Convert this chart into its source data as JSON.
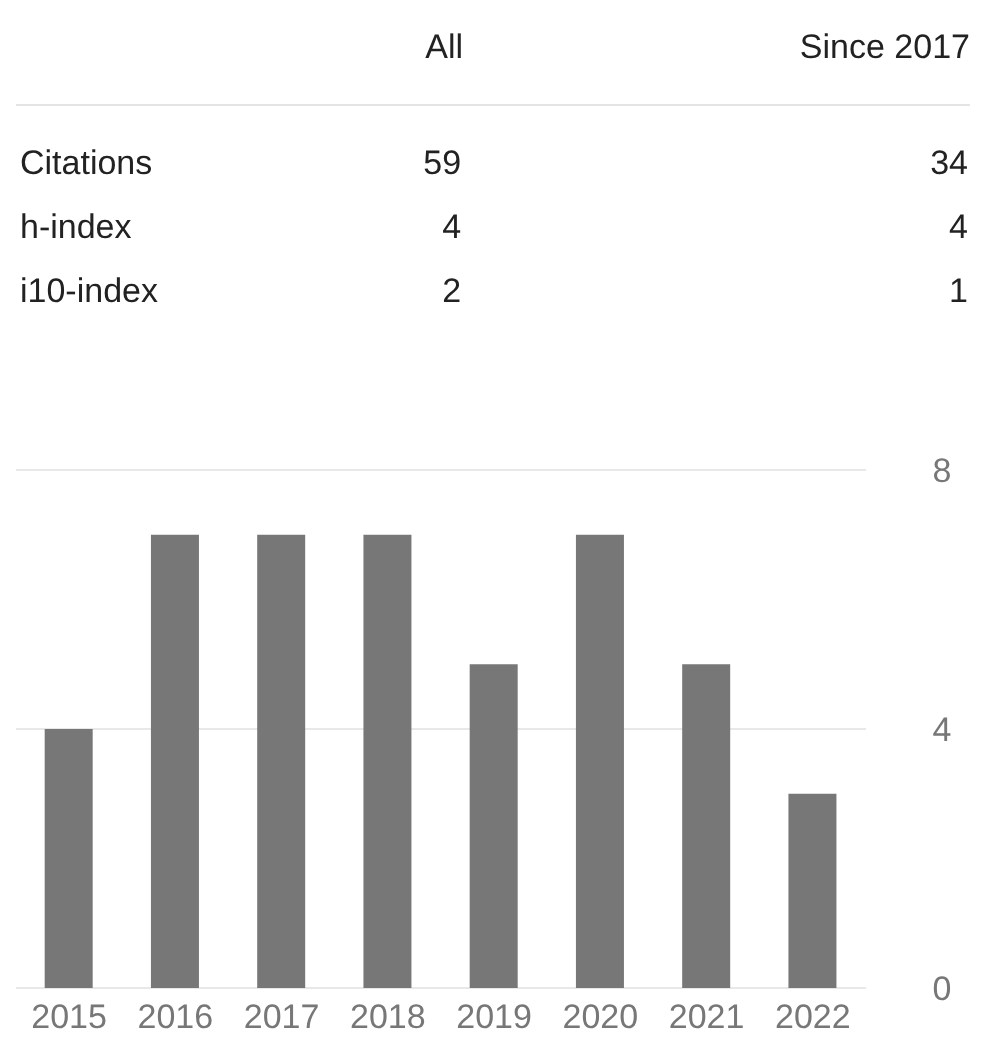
{
  "chart_data": [
    {
      "type": "other",
      "categories": [
        "All",
        "Since 2017"
      ],
      "y_categories": [
        "Citations",
        "h-index",
        "i10-index"
      ],
      "cell_labels": [
        [
          "59",
          "34"
        ],
        [
          "4",
          "4"
        ],
        [
          "2",
          "1"
        ]
      ]
    },
    {
      "type": "bar",
      "categories": [
        "2015",
        "2016",
        "2017",
        "2018",
        "2019",
        "2020",
        "2021",
        "2022"
      ],
      "values": [
        4,
        7,
        7,
        7,
        5,
        7,
        5,
        3
      ],
      "color": "#777777",
      "ylim": [
        0,
        8
      ],
      "yticks": [
        0,
        4,
        8
      ],
      "grid": "y"
    }
  ]
}
